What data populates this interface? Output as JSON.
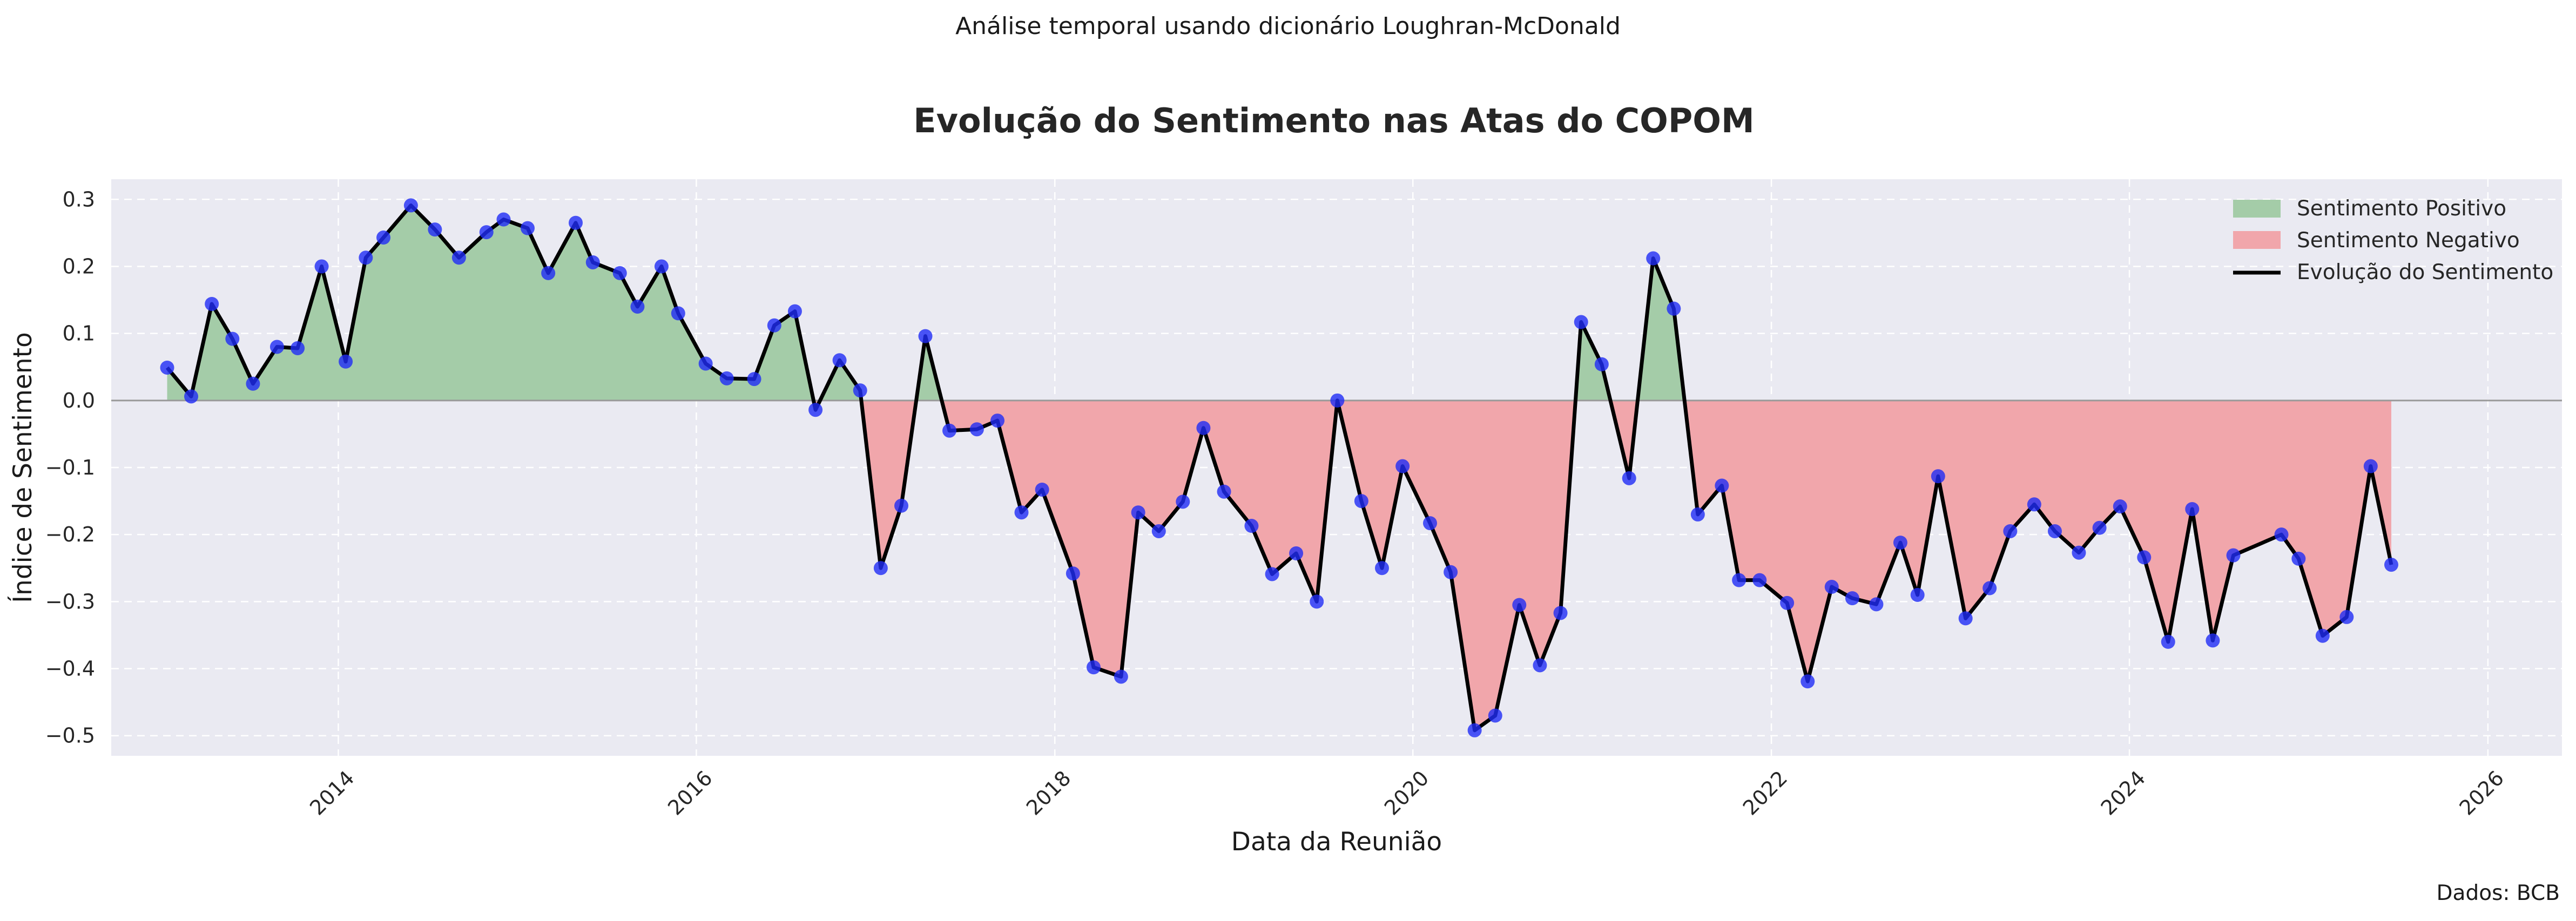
{
  "suptitle": "Análise temporal usando dicionário Loughran-McDonald",
  "source_note": "Dados: BCB",
  "chart_data": {
    "type": "area",
    "title": "Evolução do Sentimento nas Atas do COPOM",
    "xlabel": "Data da Reunião",
    "ylabel": "Índice de Sentimento",
    "x_ticks": [
      "2014",
      "2016",
      "2018",
      "2020",
      "2022",
      "2024",
      "2026"
    ],
    "y_ticks": [
      "0.3",
      "0.2",
      "0.1",
      "0.0",
      "−0.1",
      "−0.2",
      "−0.3",
      "−0.4",
      "−0.5"
    ],
    "xlim": [
      "2012-09-25",
      "2026-06-01"
    ],
    "ylim": [
      -0.53,
      0.33
    ],
    "grid": true,
    "legend_position": "top-right",
    "legend": [
      "Sentimento Positivo",
      "Sentimento Negativo",
      "Evolução do Sentimento"
    ],
    "colors": {
      "positive_fill": "#a4cca8",
      "negative_fill": "#f1a6ab",
      "line": "#000000",
      "points": "#1f2cf5",
      "plot_background": "#eaeaf2",
      "zero_line": "#999999"
    },
    "series": [
      {
        "name": "Evolução do Sentimento",
        "points": [
          [
            "2013-01-17",
            0.049
          ],
          [
            "2013-03-07",
            0.006
          ],
          [
            "2013-04-18",
            0.144
          ],
          [
            "2013-05-30",
            0.092
          ],
          [
            "2013-07-11",
            0.025
          ],
          [
            "2013-08-29",
            0.08
          ],
          [
            "2013-10-10",
            0.078
          ],
          [
            "2013-11-28",
            0.2
          ],
          [
            "2014-01-16",
            0.058
          ],
          [
            "2014-02-26",
            0.213
          ],
          [
            "2014-04-03",
            0.243
          ],
          [
            "2014-05-29",
            0.291
          ],
          [
            "2014-07-17",
            0.255
          ],
          [
            "2014-09-04",
            0.213
          ],
          [
            "2014-10-30",
            0.251
          ],
          [
            "2014-12-04",
            0.27
          ],
          [
            "2015-01-22",
            0.257
          ],
          [
            "2015-03-05",
            0.19
          ],
          [
            "2015-04-30",
            0.265
          ],
          [
            "2015-06-04",
            0.206
          ],
          [
            "2015-07-29",
            0.19
          ],
          [
            "2015-09-03",
            0.14
          ],
          [
            "2015-10-22",
            0.2
          ],
          [
            "2015-11-25",
            0.13
          ],
          [
            "2016-01-20",
            0.055
          ],
          [
            "2016-03-03",
            0.033
          ],
          [
            "2016-04-28",
            0.032
          ],
          [
            "2016-06-08",
            0.112
          ],
          [
            "2016-07-20",
            0.133
          ],
          [
            "2016-08-31",
            -0.014
          ],
          [
            "2016-10-19",
            0.06
          ],
          [
            "2016-11-30",
            0.015
          ],
          [
            "2017-01-11",
            -0.25
          ],
          [
            "2017-02-22",
            -0.157
          ],
          [
            "2017-04-12",
            0.096
          ],
          [
            "2017-05-31",
            -0.045
          ],
          [
            "2017-07-26",
            -0.043
          ],
          [
            "2017-09-06",
            -0.03
          ],
          [
            "2017-10-25",
            -0.167
          ],
          [
            "2017-12-06",
            -0.133
          ],
          [
            "2018-02-07",
            -0.258
          ],
          [
            "2018-03-21",
            -0.398
          ],
          [
            "2018-05-16",
            -0.412
          ],
          [
            "2018-06-20",
            -0.167
          ],
          [
            "2018-08-01",
            -0.195
          ],
          [
            "2018-09-19",
            -0.151
          ],
          [
            "2018-10-31",
            -0.041
          ],
          [
            "2018-12-12",
            -0.136
          ],
          [
            "2019-02-06",
            -0.187
          ],
          [
            "2019-03-20",
            -0.259
          ],
          [
            "2019-05-08",
            -0.228
          ],
          [
            "2019-06-19",
            -0.3
          ],
          [
            "2019-07-31",
            0.0
          ],
          [
            "2019-09-18",
            -0.15
          ],
          [
            "2019-10-30",
            -0.25
          ],
          [
            "2019-12-11",
            -0.098
          ],
          [
            "2020-02-05",
            -0.183
          ],
          [
            "2020-03-18",
            -0.256
          ],
          [
            "2020-05-06",
            -0.492
          ],
          [
            "2020-06-17",
            -0.47
          ],
          [
            "2020-08-05",
            -0.305
          ],
          [
            "2020-09-16",
            -0.395
          ],
          [
            "2020-10-28",
            -0.317
          ],
          [
            "2020-12-09",
            0.117
          ],
          [
            "2021-01-20",
            0.054
          ],
          [
            "2021-03-17",
            -0.116
          ],
          [
            "2021-05-05",
            0.212
          ],
          [
            "2021-06-16",
            0.137
          ],
          [
            "2021-08-04",
            -0.17
          ],
          [
            "2021-09-22",
            -0.127
          ],
          [
            "2021-10-27",
            -0.268
          ],
          [
            "2021-12-08",
            -0.268
          ],
          [
            "2022-02-02",
            -0.302
          ],
          [
            "2022-03-16",
            -0.419
          ],
          [
            "2022-05-04",
            -0.278
          ],
          [
            "2022-06-15",
            -0.295
          ],
          [
            "2022-08-03",
            -0.304
          ],
          [
            "2022-09-21",
            -0.212
          ],
          [
            "2022-10-26",
            -0.29
          ],
          [
            "2022-12-07",
            -0.113
          ],
          [
            "2023-02-01",
            -0.325
          ],
          [
            "2023-03-22",
            -0.28
          ],
          [
            "2023-05-03",
            -0.195
          ],
          [
            "2023-06-21",
            -0.155
          ],
          [
            "2023-08-02",
            -0.195
          ],
          [
            "2023-09-20",
            -0.227
          ],
          [
            "2023-11-01",
            -0.19
          ],
          [
            "2023-12-13",
            -0.158
          ],
          [
            "2024-01-31",
            -0.234
          ],
          [
            "2024-03-20",
            -0.36
          ],
          [
            "2024-05-08",
            -0.162
          ],
          [
            "2024-06-19",
            -0.358
          ],
          [
            "2024-07-31",
            -0.231
          ],
          [
            "2024-11-06",
            -0.2
          ],
          [
            "2024-12-11",
            -0.236
          ],
          [
            "2025-01-29",
            -0.351
          ],
          [
            "2025-03-19",
            -0.323
          ],
          [
            "2025-05-07",
            -0.098
          ],
          [
            "2025-06-18",
            -0.245
          ]
        ]
      }
    ]
  }
}
